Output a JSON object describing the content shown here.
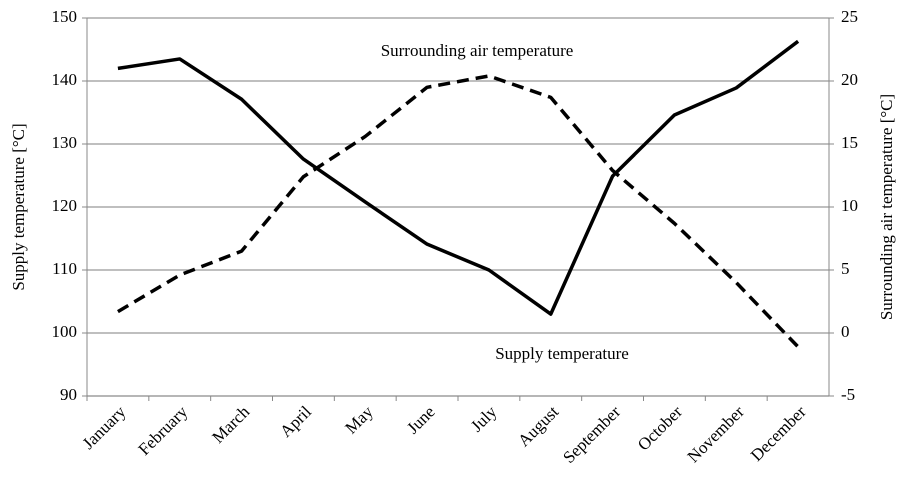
{
  "chart_data": {
    "type": "line",
    "categories": [
      "January",
      "February",
      "March",
      "April",
      "May",
      "June",
      "July",
      "August",
      "September",
      "October",
      "November",
      "December"
    ],
    "series": [
      {
        "name": "Supply temperature",
        "color": "#000000",
        "dashed": false,
        "axis": "y",
        "values": [
          142,
          143.5,
          137.1,
          127.6,
          120.8,
          114.1,
          110,
          103,
          124.9,
          134.6,
          138.9,
          146.3
        ]
      },
      {
        "name": "Surrounding air temperature",
        "color": "#000000",
        "dashed": true,
        "axis": "y2",
        "values": [
          1.7,
          4.6,
          6.5,
          12.4,
          15.6,
          19.5,
          20.4,
          18.7,
          12.9,
          8.7,
          4.0,
          -1.1
        ]
      }
    ],
    "ylabel": "Supply temperature [°C]",
    "y2label": "Surrounding air temperature [°C]",
    "ylim": [
      90,
      150
    ],
    "yticks": [
      90,
      100,
      110,
      120,
      130,
      140,
      150
    ],
    "y2lim": [
      -5,
      25
    ],
    "y2ticks": [
      -5,
      0,
      5,
      10,
      15,
      20,
      25
    ],
    "grid": true
  }
}
